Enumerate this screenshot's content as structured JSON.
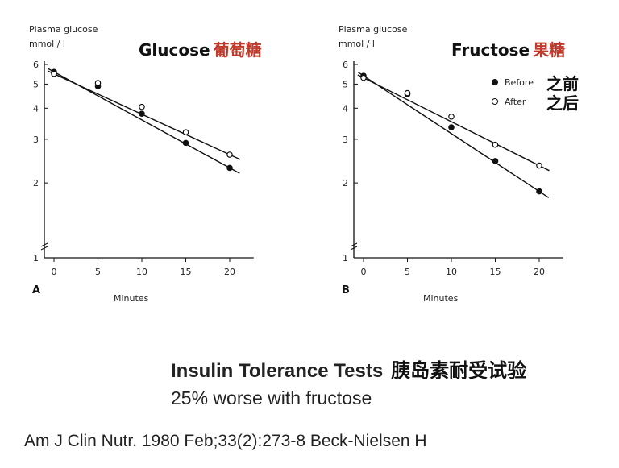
{
  "chart_data": [
    {
      "type": "line",
      "panel": "A",
      "title": "Glucose",
      "title_cn": "葡萄糖",
      "ylabel": "Plasma glucose",
      "yunit": "mmol / l",
      "xlabel": "Minutes",
      "xticks": [
        "0",
        "5",
        "10",
        "15",
        "20"
      ],
      "yticks": [
        "1",
        "2",
        "3",
        "4",
        "5",
        "6"
      ],
      "xlim": [
        -1,
        22
      ],
      "ylim": [
        1,
        6
      ],
      "y_scale": "log",
      "series": [
        {
          "name": "Before",
          "marker": "filled",
          "x": [
            0,
            5,
            10,
            15,
            20
          ],
          "y": [
            5.6,
            4.9,
            3.8,
            2.9,
            2.3
          ]
        },
        {
          "name": "After",
          "marker": "open",
          "x": [
            0,
            5,
            10,
            15,
            20
          ],
          "y": [
            5.5,
            5.05,
            4.05,
            3.2,
            2.6
          ]
        }
      ]
    },
    {
      "type": "line",
      "panel": "B",
      "title": "Fructose",
      "title_cn": "果糖",
      "ylabel": "Plasma glucose",
      "yunit": "mmol / l",
      "xlabel": "Minutes",
      "xticks": [
        "0",
        "5",
        "10",
        "15",
        "20"
      ],
      "yticks": [
        "1",
        "2",
        "3",
        "4",
        "5",
        "6"
      ],
      "xlim": [
        -1,
        22
      ],
      "ylim": [
        1,
        6
      ],
      "y_scale": "log",
      "legend": [
        {
          "label": "Before",
          "label_cn": "之前",
          "marker": "filled"
        },
        {
          "label": "After",
          "label_cn": "之后",
          "marker": "open"
        }
      ],
      "series": [
        {
          "name": "Before",
          "marker": "filled",
          "x": [
            0,
            5,
            10,
            15,
            20
          ],
          "y": [
            5.4,
            4.55,
            3.35,
            2.45,
            1.85
          ]
        },
        {
          "name": "After",
          "marker": "open",
          "x": [
            0,
            5,
            10,
            15,
            20
          ],
          "y": [
            5.3,
            4.6,
            3.7,
            2.85,
            2.35
          ]
        }
      ]
    }
  ],
  "caption": {
    "title": "Insulin Tolerance Tests",
    "title_cn": "胰岛素耐受试验",
    "subtitle": "25% worse with fructose"
  },
  "citation": "Am J Clin Nutr. 1980 Feb;33(2):273-8 Beck-Nielsen H"
}
